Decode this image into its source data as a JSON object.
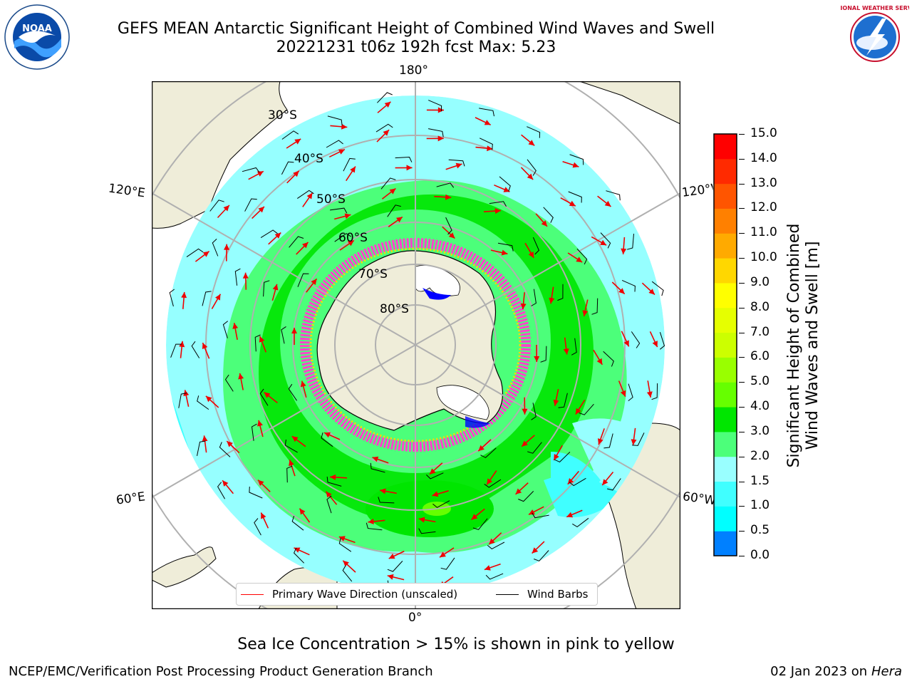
{
  "header": {
    "title_line1": "GEFS MEAN Antarctic Significant Height of Combined Wind Waves and Swell",
    "title_line2": "20221231 t06z 192h fcst   Max: 5.23"
  },
  "logos": {
    "left": {
      "icon": "noaa-logo-icon",
      "text": "NOAA"
    },
    "right": {
      "icon": "nws-logo-icon",
      "text": "NATIONAL WEATHER SERVICE"
    }
  },
  "map": {
    "projection": "south-polar-stereographic",
    "longitude_labels": {
      "top": "180°",
      "bottom": "0°",
      "left_upper": "120°E",
      "left_lower": "60°E",
      "right_upper": "120°W",
      "right_lower": "60°W"
    },
    "latitude_labels": [
      "30°S",
      "40°S",
      "50°S",
      "60°S",
      "70°S",
      "80°S"
    ],
    "colors": {
      "land": "#efedd9",
      "ocean_low": "#96ffff",
      "ocean_mid": "#4cff7a",
      "ocean_high": "#00e600",
      "ice": "#ff44cc",
      "wave_arrow": "#ff0000",
      "wind_barb": "#000000"
    }
  },
  "legend": {
    "items": [
      {
        "label": "Primary Wave Direction (unscaled)",
        "color": "#ff0000"
      },
      {
        "label": "Wind Barbs",
        "color": "#000000"
      }
    ]
  },
  "colorbar": {
    "label_line1": "Significant Height of Combined",
    "label_line2": "Wind Waves and Swell [m]",
    "ticks": [
      "15.0",
      "14.0",
      "13.0",
      "12.0",
      "11.0",
      "10.0",
      "9.0",
      "8.0",
      "7.0",
      "6.0",
      "5.0",
      "4.0",
      "3.0",
      "2.0",
      "1.5",
      "1.0",
      "0.5",
      "0.0"
    ],
    "colors": [
      "#0000ff",
      "#0080ff",
      "#00ffff",
      "#40ffff",
      "#99ffff",
      "#4cff7a",
      "#00e600",
      "#66ff00",
      "#99ff00",
      "#ccff00",
      "#e6ff00",
      "#ffff00",
      "#ffd700",
      "#ffaa00",
      "#ff8000",
      "#ff5500",
      "#ff2a00",
      "#ff0000"
    ]
  },
  "footer": {
    "subtitle": "Sea Ice Concentration > 15% is shown in pink to yellow",
    "credit": "NCEP/EMC/Verification Post Processing Product Generation Branch",
    "date_text": "02 Jan 2023 on ",
    "machine": "Hera"
  }
}
